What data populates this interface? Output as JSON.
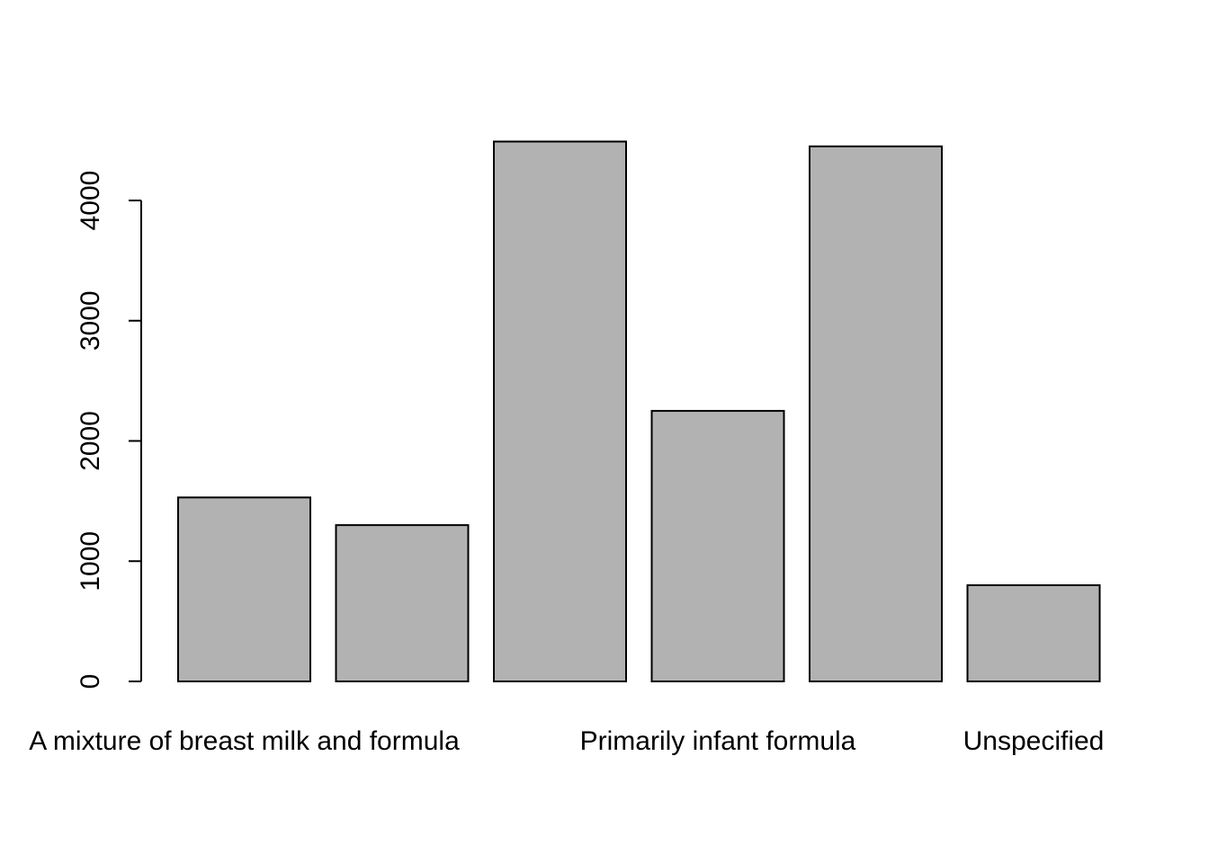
{
  "chart_data": {
    "type": "bar",
    "categories": [
      "A mixture of breast milk and formula",
      "",
      "",
      "Primarily infant formula",
      "",
      "Unspecified"
    ],
    "values": [
      1530,
      1300,
      4490,
      2250,
      4450,
      800
    ],
    "title": "",
    "xlabel": "",
    "ylabel": "",
    "ylim": [
      0,
      4500
    ],
    "yticks": [
      0,
      1000,
      2000,
      3000,
      4000
    ],
    "grid": false,
    "colors": {
      "bar_fill": "#b2b2b2",
      "bar_stroke": "#000000",
      "background": "#ffffff"
    }
  }
}
